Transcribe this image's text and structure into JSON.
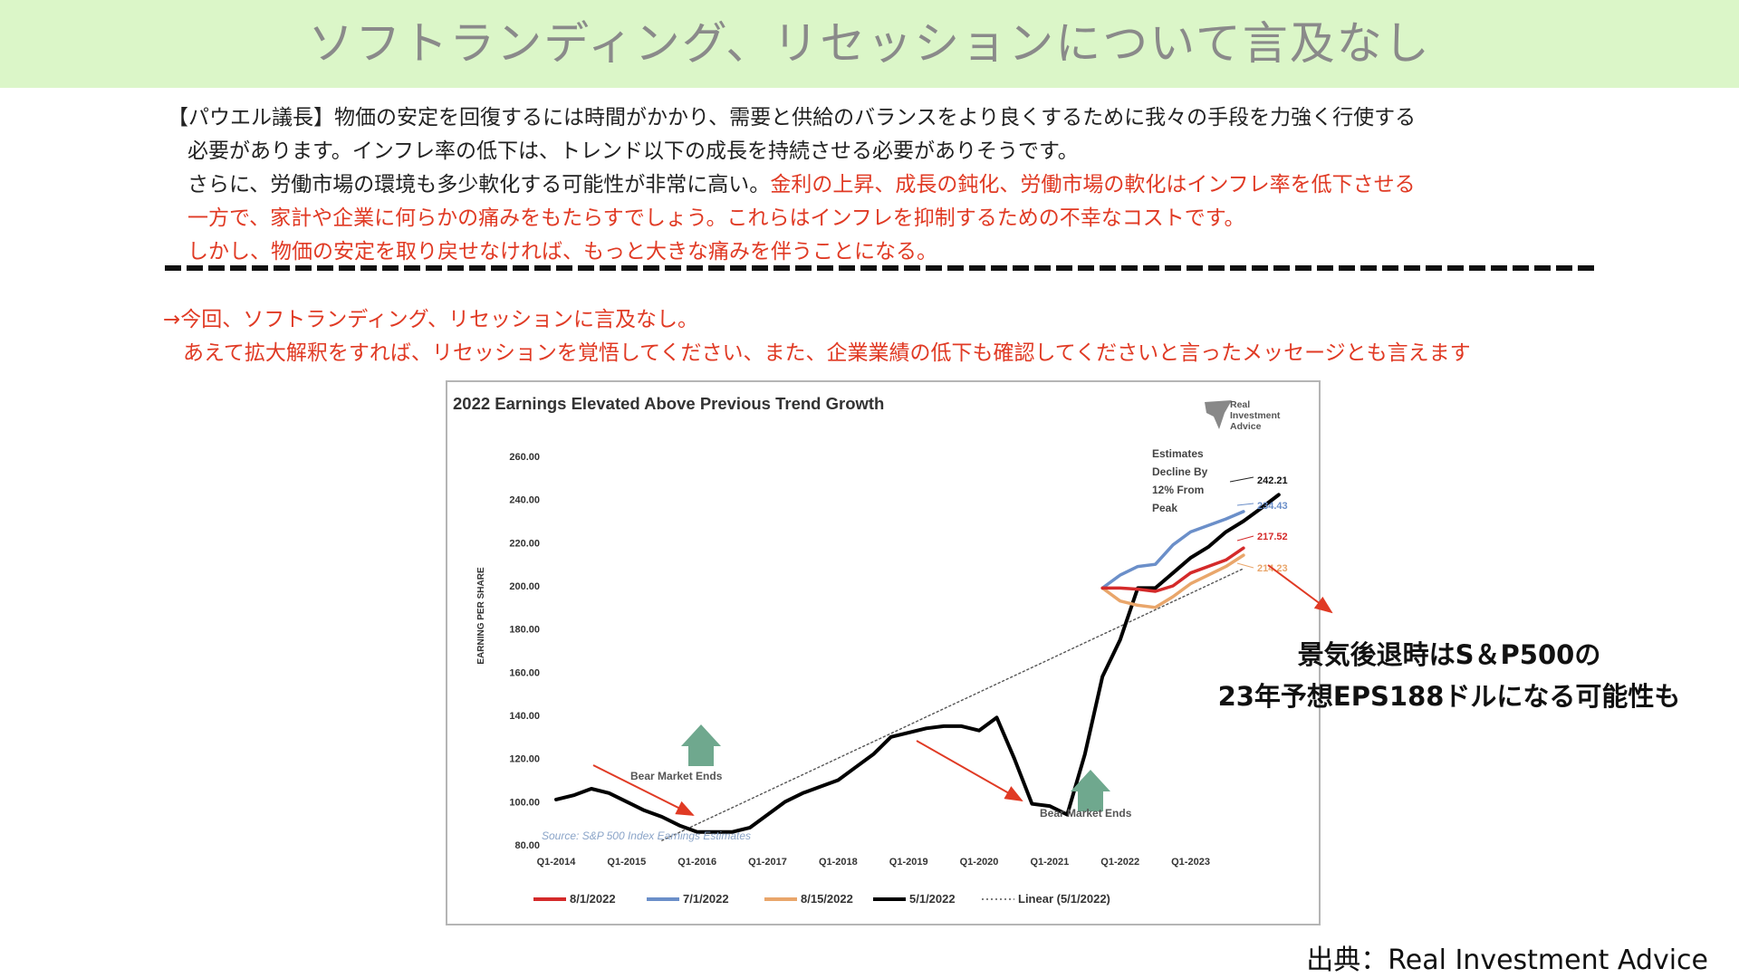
{
  "header": {
    "title": "ソフトランディング、リセッションについて言及なし"
  },
  "quote": {
    "line1": "【パウエル議長】物価の安定を回復するには時間がかかり、需要と供給のバランスをより良くするために我々の手段を力強く行使する",
    "line2": "必要があります。インフレ率の低下は、トレンド以下の成長を持続させる必要がありそうです。",
    "line3_black": "さらに、労働市場の環境も多少軟化する可能性が非常に高い。",
    "line3_red": "金利の上昇、成長の鈍化、労働市場の軟化はインフレ率を低下させる",
    "line4": "一方で、家計や企業に何らかの痛みをもたらすでしょう。これらはインフレを抑制するための不幸なコストです。",
    "line5": "しかし、物価の安定を取り戻せなければ、もっと大きな痛みを伴うことになる。"
  },
  "note": {
    "line1": "→今回、ソフトランディング、リセッションに言及なし。",
    "line2": "あえて拡大解釈をすれば、リセッションを覚悟してください、また、企業業績の低下も確認してくださいと言ったメッセージとも言えます"
  },
  "callout": {
    "line1": "景気後退時はS＆P500の",
    "line2": "23年予想EPS188ドルになる可能性も"
  },
  "source_label": "出典：Real Investment Advice",
  "colors": {
    "title_bg": "#dbf6c8",
    "red_text": "#e03a24",
    "series_8_1": "#d42a2a",
    "series_7_1": "#6b8fc9",
    "series_8_15": "#e9a66b",
    "series_5_1": "#000000",
    "arrow_up": "#6fa88e"
  },
  "chart_data": {
    "type": "line",
    "title": "2022 Earnings Elevated Above Previous Trend Growth",
    "logo_text": [
      "Real",
      "Investment",
      "Advice"
    ],
    "ylabel": "EARNING PER SHARE",
    "ylim": [
      80,
      260
    ],
    "yticks": [
      "260.00",
      "240.00",
      "220.00",
      "200.00",
      "180.00",
      "160.00",
      "140.00",
      "120.00",
      "100.00",
      "80.00"
    ],
    "xticks": [
      "Q1-2014",
      "Q1-2015",
      "Q1-2016",
      "Q1-2017",
      "Q1-2018",
      "Q1-2019",
      "Q1-2020",
      "Q1-2021",
      "Q1-2022",
      "Q1-2023"
    ],
    "series": [
      {
        "name": "8/1/2022",
        "color": "#d42a2a",
        "points": [
          [
            2021.75,
            199
          ],
          [
            2022.0,
            199
          ],
          [
            2022.25,
            198.5
          ],
          [
            2022.5,
            197.5
          ],
          [
            2022.75,
            200
          ],
          [
            2023.0,
            206
          ],
          [
            2023.5,
            212
          ],
          [
            2023.75,
            217.52
          ]
        ]
      },
      {
        "name": "7/1/2022",
        "color": "#6b8fc9",
        "points": [
          [
            2021.75,
            199
          ],
          [
            2022.0,
            205
          ],
          [
            2022.25,
            209
          ],
          [
            2022.5,
            210
          ],
          [
            2022.75,
            219
          ],
          [
            2023.0,
            225
          ],
          [
            2023.5,
            231
          ],
          [
            2023.75,
            234.43
          ]
        ]
      },
      {
        "name": "8/15/2022",
        "color": "#e9a66b",
        "points": [
          [
            2021.75,
            199
          ],
          [
            2022.0,
            193
          ],
          [
            2022.25,
            191
          ],
          [
            2022.5,
            190
          ],
          [
            2022.75,
            195
          ],
          [
            2023.0,
            201
          ],
          [
            2023.5,
            209
          ],
          [
            2023.75,
            214.23
          ]
        ]
      },
      {
        "name": "5/1/2022",
        "color": "#000000",
        "points": [
          [
            2014.0,
            101
          ],
          [
            2014.25,
            103
          ],
          [
            2014.5,
            106
          ],
          [
            2014.75,
            104
          ],
          [
            2015.0,
            100
          ],
          [
            2015.25,
            96
          ],
          [
            2015.5,
            93
          ],
          [
            2015.75,
            89
          ],
          [
            2016.0,
            86
          ],
          [
            2016.25,
            86
          ],
          [
            2016.5,
            86
          ],
          [
            2016.75,
            88
          ],
          [
            2017.0,
            94
          ],
          [
            2017.25,
            100
          ],
          [
            2017.5,
            104
          ],
          [
            2017.75,
            107
          ],
          [
            2018.0,
            110
          ],
          [
            2018.25,
            116
          ],
          [
            2018.5,
            122
          ],
          [
            2018.75,
            130
          ],
          [
            2019.0,
            132
          ],
          [
            2019.25,
            134
          ],
          [
            2019.5,
            135
          ],
          [
            2019.75,
            135
          ],
          [
            2020.0,
            133
          ],
          [
            2020.25,
            139
          ],
          [
            2020.5,
            120
          ],
          [
            2020.75,
            99
          ],
          [
            2021.0,
            98
          ],
          [
            2021.25,
            94
          ],
          [
            2021.5,
            122
          ],
          [
            2021.75,
            158
          ],
          [
            2022.0,
            175
          ],
          [
            2022.25,
            199
          ],
          [
            2022.5,
            199
          ],
          [
            2022.75,
            206
          ],
          [
            2023.0,
            213
          ],
          [
            2023.25,
            218
          ],
          [
            2023.5,
            225
          ],
          [
            2023.75,
            230
          ],
          [
            2024.0,
            236
          ],
          [
            2024.25,
            242.21
          ]
        ]
      },
      {
        "name": "Linear (5/1/2022)",
        "color": "#555555",
        "dashed": true,
        "points": [
          [
            2015.5,
            82
          ],
          [
            2023.75,
            208
          ]
        ]
      }
    ],
    "end_labels": [
      "242.21",
      "234.43",
      "217.52",
      "214.23"
    ],
    "annotations": {
      "estimates": [
        "Estimates",
        "Decline By",
        "12% From",
        "Peak"
      ],
      "bear1": "Bear Market Ends",
      "bear2": "Bear Market Ends",
      "source": "Source: S&P 500 Index Earnings Estimates"
    },
    "legend_position": "bottom",
    "grid": false
  }
}
